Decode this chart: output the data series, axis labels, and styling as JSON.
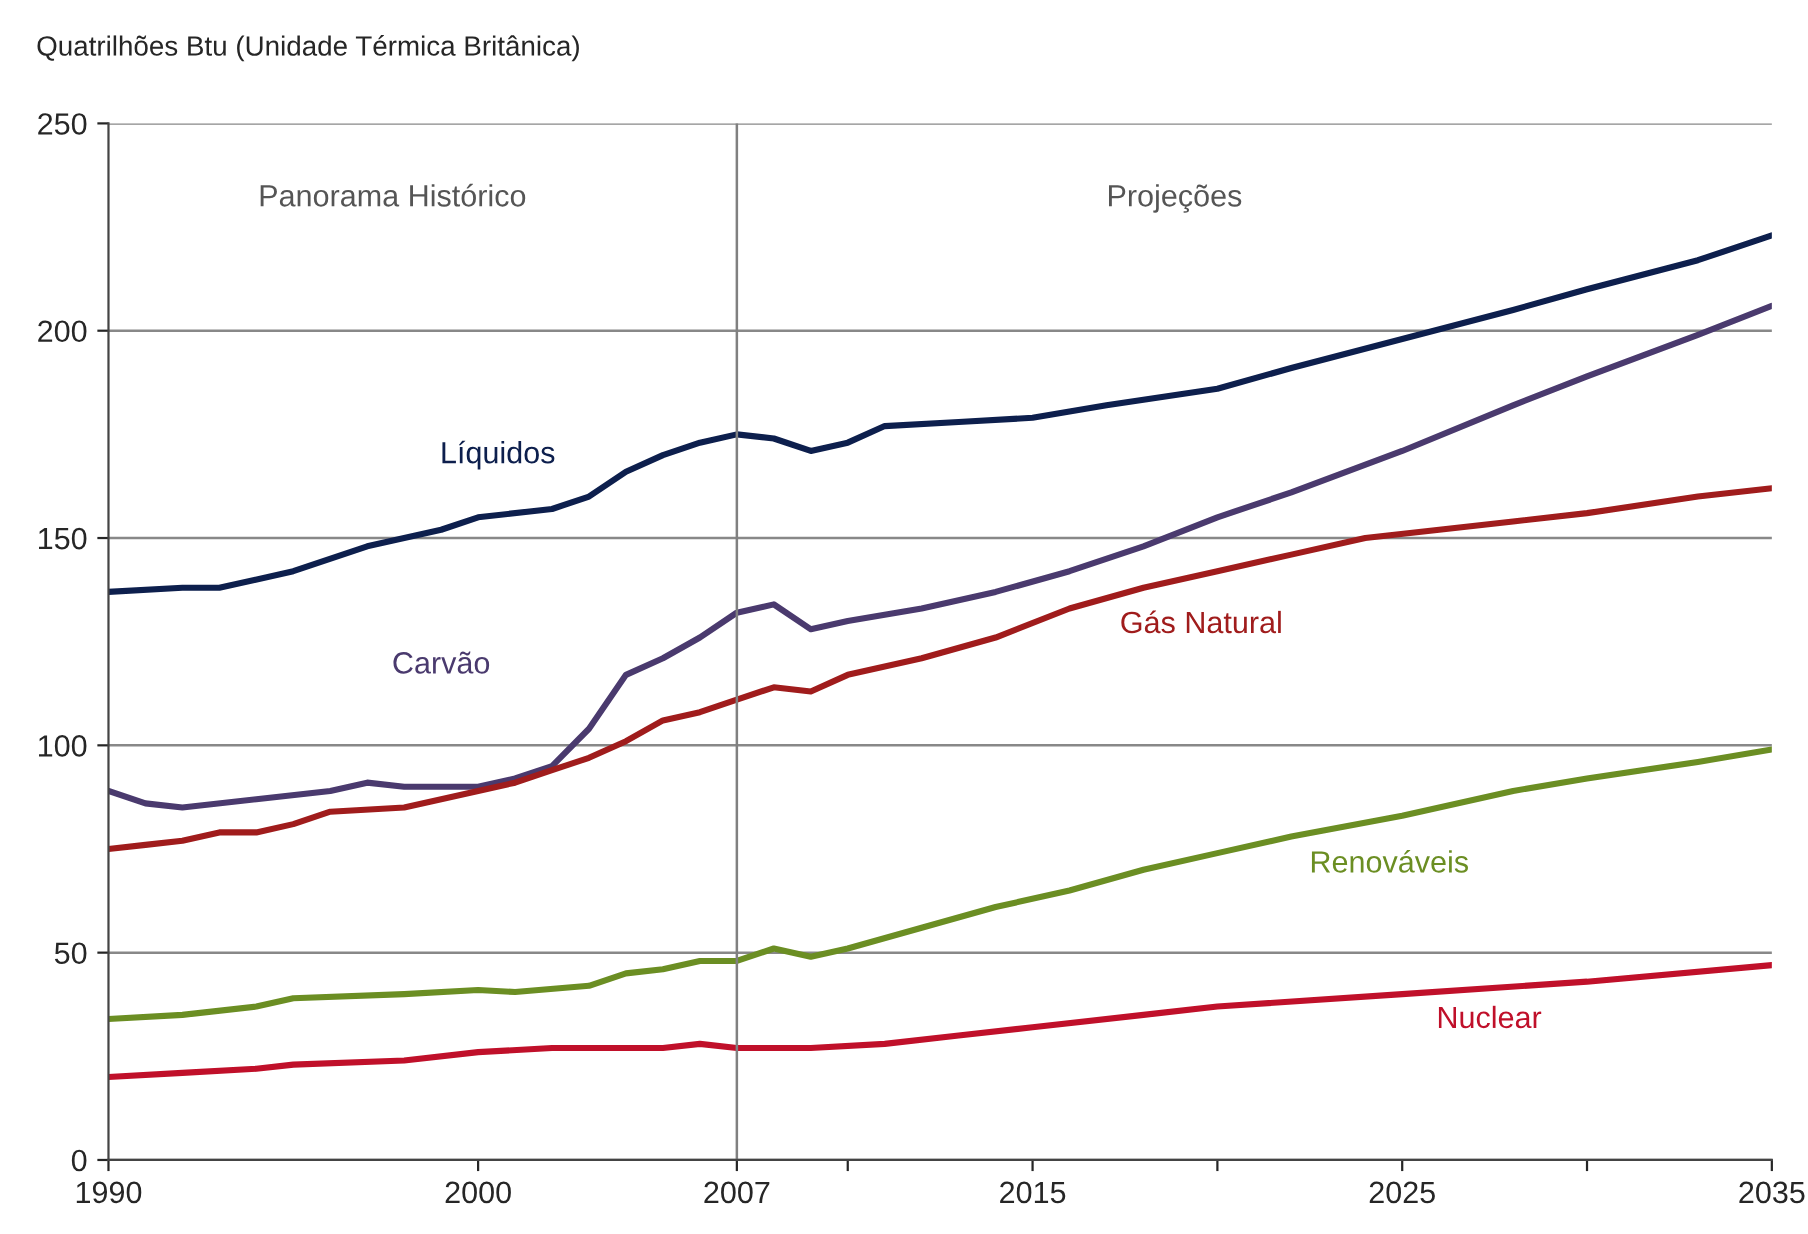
{
  "chart_data": {
    "type": "line",
    "ylabel": "Quatrilhões Btu (Unidade Térmica Britânica)",
    "xlim": [
      1990,
      2035
    ],
    "xticks": [
      1990,
      2000,
      2007,
      {
        "value": 2010,
        "label": null
      },
      2015,
      {
        "value": 2020,
        "label": null
      },
      2025,
      {
        "value": 2030,
        "label": null
      },
      2035
    ],
    "ylim": [
      0,
      250
    ],
    "yticks": [
      0,
      50,
      100,
      150,
      200,
      250
    ],
    "grid": "y",
    "legend": false,
    "marker": "none",
    "line_style": "solid",
    "ref_lines": [
      {
        "axis": "x",
        "value": 2007,
        "color": "#808080"
      }
    ],
    "annotations": [
      "Panorama Histórico",
      "Projeções"
    ],
    "series": [
      {
        "name": "Líquidos",
        "color": "#0d1f4d",
        "x": [
          1990,
          1992,
          1993,
          1995,
          1997,
          1999,
          2000,
          2002,
          2003,
          2004,
          2005,
          2006,
          2007,
          2008,
          2009,
          2010,
          2011,
          2013,
          2015,
          2017,
          2020,
          2022,
          2025,
          2028,
          2030,
          2033,
          2035
        ],
        "values": [
          137,
          138,
          138,
          142,
          148,
          152,
          155,
          157,
          160,
          166,
          170,
          173,
          175,
          174,
          171,
          173,
          177,
          178,
          179,
          182,
          186,
          191,
          198,
          205,
          210,
          217,
          223
        ]
      },
      {
        "name": "Carvão",
        "color": "#4a3a6e",
        "x": [
          1990,
          1991,
          1992,
          1994,
          1996,
          1997,
          1998,
          2000,
          2001,
          2002,
          2003,
          2004,
          2005,
          2006,
          2007,
          2008,
          2009,
          2010,
          2012,
          2014,
          2016,
          2018,
          2020,
          2022,
          2025,
          2028,
          2030,
          2033,
          2035
        ],
        "values": [
          89,
          86,
          85,
          87,
          89,
          91,
          90,
          90,
          92,
          95,
          104,
          117,
          121,
          126,
          132,
          134,
          128,
          130,
          133,
          137,
          142,
          148,
          155,
          161,
          171,
          182,
          189,
          199,
          206
        ]
      },
      {
        "name": "Gás Natural",
        "color": "#a01c1c",
        "x": [
          1990,
          1991,
          1992,
          1993,
          1994,
          1995,
          1996,
          1998,
          2000,
          2001,
          2002,
          2003,
          2004,
          2005,
          2006,
          2007,
          2008,
          2009,
          2010,
          2012,
          2014,
          2016,
          2018,
          2020,
          2022,
          2024,
          2026,
          2028,
          2030,
          2033,
          2035
        ],
        "values": [
          75,
          76,
          77,
          79,
          79,
          81,
          84,
          85,
          89,
          91,
          94,
          97,
          101,
          106,
          108,
          111,
          114,
          113,
          117,
          121,
          126,
          133,
          138,
          142,
          146,
          150,
          152,
          154,
          156,
          160,
          162
        ]
      },
      {
        "name": "Renováveis",
        "color": "#6b8e23",
        "x": [
          1990,
          1992,
          1994,
          1995,
          1998,
          2000,
          2001,
          2003,
          2004,
          2005,
          2006,
          2007,
          2008,
          2009,
          2010,
          2012,
          2014,
          2016,
          2018,
          2020,
          2022,
          2025,
          2028,
          2030,
          2033,
          2035
        ],
        "values": [
          34,
          35,
          37,
          39,
          40,
          41,
          40.5,
          42,
          45,
          46,
          48,
          48,
          51,
          49,
          51,
          56,
          61,
          65,
          70,
          74,
          78,
          83,
          89,
          92,
          96,
          99
        ]
      },
      {
        "name": "Nuclear",
        "color": "#c0102a",
        "x": [
          1990,
          1992,
          1994,
          1995,
          1998,
          2000,
          2002,
          2005,
          2006,
          2007,
          2009,
          2011,
          2013,
          2015,
          2018,
          2020,
          2025,
          2030,
          2035
        ],
        "values": [
          20,
          21,
          22,
          23,
          24,
          26,
          27,
          27,
          28,
          27,
          27,
          28,
          30,
          32,
          35,
          37,
          40,
          43,
          47
        ]
      }
    ]
  }
}
